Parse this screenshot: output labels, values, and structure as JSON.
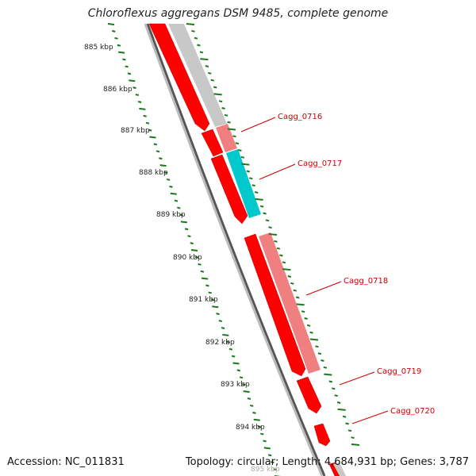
{
  "title": "Chloroflexus aggregans DSM 9485, complete genome",
  "accession": "Accession: NC_011831",
  "summary": "Topology: circular; Length: 4,684,931 bp; Genes: 3,787",
  "ruler": {
    "unit": "kbp",
    "ticks": [
      "885 kbp",
      "886 kbp",
      "887 kbp",
      "888 kbp",
      "889 kbp",
      "890 kbp",
      "891 kbp",
      "892 kbp",
      "893 kbp",
      "894 kbp",
      "895 kbp"
    ]
  },
  "genes": [
    {
      "label": "Cagg_0716",
      "color": "#f08080"
    },
    {
      "label": "Cagg_0717",
      "color": "#00c8cc"
    },
    {
      "label": "Cagg_0718",
      "color": "#f08080"
    },
    {
      "label": "Cagg_0719",
      "color": "#ff0000"
    },
    {
      "label": "Cagg_0720",
      "color": "#ff0000"
    }
  ],
  "colors": {
    "cds": "#ff0000",
    "gene": "#f08080",
    "rrna": "#00c8cc",
    "other": "#c0c0c0",
    "backbone": "#888888",
    "gc_skew": "#1a7a1a",
    "label": "#cc0000"
  }
}
